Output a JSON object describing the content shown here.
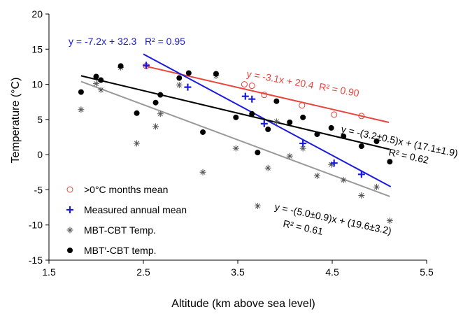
{
  "chart_data": {
    "type": "scatter",
    "xlabel": "Altitude (km above sea level)",
    "ylabel": "Temperature (°C)",
    "xlim": [
      1.5,
      5.5
    ],
    "ylim": [
      -15,
      20
    ],
    "x_ticks": [
      "1.5",
      "2.5",
      "3.5",
      "4.5",
      "5.5"
    ],
    "x_tick_values": [
      1.5,
      2.5,
      3.5,
      4.5,
      5.5
    ],
    "y_ticks": [
      "20",
      "15",
      "10",
      "5",
      "0",
      "-5",
      "-10",
      "-15"
    ],
    "y_tick_values": [
      20,
      15,
      10,
      5,
      0,
      -5,
      -10,
      -15
    ],
    "legend": {
      "position": "bottom-left",
      "items": [
        {
          "label": ">0°C months mean",
          "marker": "open-circle",
          "color": "#e8453c"
        },
        {
          "label": "Measured annual mean",
          "marker": "plus",
          "color": "#1a1adf"
        },
        {
          "label": "MBT-CBT Temp.",
          "marker": "asterisk",
          "color": "#555555"
        },
        {
          "label": "MBT′-CBT temp.",
          "marker": "filled-circle",
          "color": "#000000"
        }
      ]
    },
    "series": [
      {
        "name": ">0°C months mean",
        "marker": "open-circle",
        "color": "#e8453c",
        "points": [
          [
            2.53,
            12.6
          ],
          [
            3.57,
            10.0
          ],
          [
            3.65,
            9.8
          ],
          [
            3.78,
            8.5
          ],
          [
            4.18,
            7.0
          ],
          [
            4.52,
            5.7
          ],
          [
            4.81,
            5.5
          ]
        ]
      },
      {
        "name": "Measured annual mean",
        "marker": "plus",
        "color": "#1a1adf",
        "points": [
          [
            2.53,
            12.7
          ],
          [
            2.97,
            9.6
          ],
          [
            3.58,
            8.3
          ],
          [
            3.65,
            7.9
          ],
          [
            3.78,
            4.4
          ],
          [
            4.19,
            1.6
          ],
          [
            4.52,
            -1.2
          ],
          [
            4.81,
            -2.8
          ]
        ]
      },
      {
        "name": "MBT-CBT Temp.",
        "marker": "asterisk",
        "color": "#555555",
        "points": [
          [
            1.84,
            6.4
          ],
          [
            2.0,
            10.1
          ],
          [
            2.05,
            9.2
          ],
          [
            2.26,
            12.4
          ],
          [
            2.43,
            1.6
          ],
          [
            2.63,
            4.0
          ],
          [
            2.68,
            5.8
          ],
          [
            2.88,
            9.9
          ],
          [
            3.13,
            -2.5
          ],
          [
            3.27,
            11.2
          ],
          [
            3.48,
            0.9
          ],
          [
            3.71,
            -7.3
          ],
          [
            3.82,
            -1.9
          ],
          [
            3.91,
            4.7
          ],
          [
            4.05,
            -0.2
          ],
          [
            4.19,
            0.9
          ],
          [
            4.34,
            -3.0
          ],
          [
            4.49,
            -1.4
          ],
          [
            4.62,
            -3.6
          ],
          [
            4.81,
            -5.8
          ],
          [
            4.97,
            -4.6
          ],
          [
            5.11,
            -9.4
          ]
        ]
      },
      {
        "name": "MBT′-CBT temp.",
        "marker": "filled-circle",
        "color": "#000000",
        "points": [
          [
            1.84,
            8.9
          ],
          [
            2.0,
            11.1
          ],
          [
            2.05,
            10.6
          ],
          [
            2.26,
            12.6
          ],
          [
            2.43,
            5.9
          ],
          [
            2.63,
            7.4
          ],
          [
            2.68,
            8.5
          ],
          [
            2.88,
            10.9
          ],
          [
            2.98,
            11.6
          ],
          [
            3.13,
            3.2
          ],
          [
            3.27,
            11.5
          ],
          [
            3.48,
            5.3
          ],
          [
            3.65,
            5.8
          ],
          [
            3.71,
            0.3
          ],
          [
            3.82,
            3.6
          ],
          [
            3.91,
            7.6
          ],
          [
            4.05,
            4.6
          ],
          [
            4.19,
            5.3
          ],
          [
            4.34,
            2.9
          ],
          [
            4.49,
            3.8
          ],
          [
            4.62,
            2.6
          ],
          [
            4.81,
            1.2
          ],
          [
            4.97,
            1.9
          ],
          [
            5.11,
            -1.0
          ]
        ]
      }
    ],
    "fit_lines": [
      {
        "series": ">0°C months mean",
        "color": "#e8453c",
        "x": [
          2.5,
          5.1
        ],
        "y": [
          12.65,
          4.59
        ]
      },
      {
        "series": "Measured annual mean",
        "color": "#1a1adf",
        "x": [
          2.5,
          5.12
        ],
        "y": [
          14.3,
          -4.56
        ]
      },
      {
        "series": "MBT′-CBT temp.",
        "color": "#000000",
        "x": [
          1.84,
          5.11
        ],
        "y": [
          11.21,
          0.75
        ]
      },
      {
        "series": "MBT-CBT Temp.",
        "color": "#999999",
        "x": [
          1.84,
          5.11
        ],
        "y": [
          10.4,
          -5.95
        ]
      }
    ],
    "annotations": {
      "blue": "y = -7.2x + 32.3   R² = 0.95",
      "red": "y = -3.1x + 20.4  R² = 0.90",
      "black_line1": "y = -(3.2±0.5)x + (17.1±1.9)",
      "black_line2": "R² = 0.62",
      "gray_line1": "y = -(5.0±0.9)x + (19.6±3.2)",
      "gray_line2": "R² = 0.61"
    }
  }
}
